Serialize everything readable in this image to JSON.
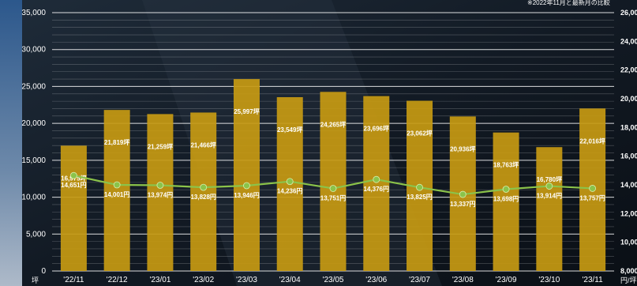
{
  "note": "※2022年11月と最新月の比較",
  "chart_data": {
    "type": "bar",
    "categories": [
      "'22/11",
      "'22/12",
      "'23/01",
      "'23/02",
      "'23/03",
      "'23/04",
      "'23/05",
      "'23/06",
      "'23/07",
      "'23/08",
      "'23/09",
      "'23/10",
      "'23/11"
    ],
    "series": [
      {
        "type": "bar",
        "axis": "left",
        "values": [
          16975,
          21819,
          21259,
          21466,
          25997,
          23549,
          24265,
          23696,
          23062,
          20936,
          18763,
          16780,
          22016
        ],
        "labels": [
          "16,975坪",
          "21,819坪",
          "21,259坪",
          "21,466坪",
          "25,997坪",
          "23,549坪",
          "24,265坪",
          "23,696坪",
          "23,062坪",
          "20,936坪",
          "18,763坪",
          "16,780坪",
          "22,016坪"
        ],
        "color": "#c79a12"
      },
      {
        "type": "line",
        "axis": "right",
        "values": [
          14651,
          14001,
          13974,
          13828,
          13946,
          14236,
          13751,
          14376,
          13825,
          13337,
          13698,
          13914,
          13757
        ],
        "labels": [
          "14,651円",
          "14,001円",
          "13,974円",
          "13,828円",
          "13,946円",
          "14,236円",
          "13,751円",
          "14,376円",
          "13,825円",
          "13,337円",
          "13,698円",
          "13,914円",
          "13,757円"
        ],
        "color": "#8bc34a"
      }
    ],
    "y_left": {
      "min": 0,
      "max": 35000,
      "ticks": [
        "0",
        "5,000",
        "10,000",
        "15,000",
        "20,000",
        "25,000",
        "30,000",
        "35,000"
      ],
      "unit": "坪"
    },
    "y_right": {
      "min": 8000,
      "max": 26000,
      "ticks": [
        "8,000",
        "10,000",
        "12,000",
        "14,000",
        "16,000",
        "18,000",
        "20,000",
        "22,000",
        "24,000",
        "26,000"
      ],
      "unit": "円/坪"
    },
    "grid": true
  }
}
